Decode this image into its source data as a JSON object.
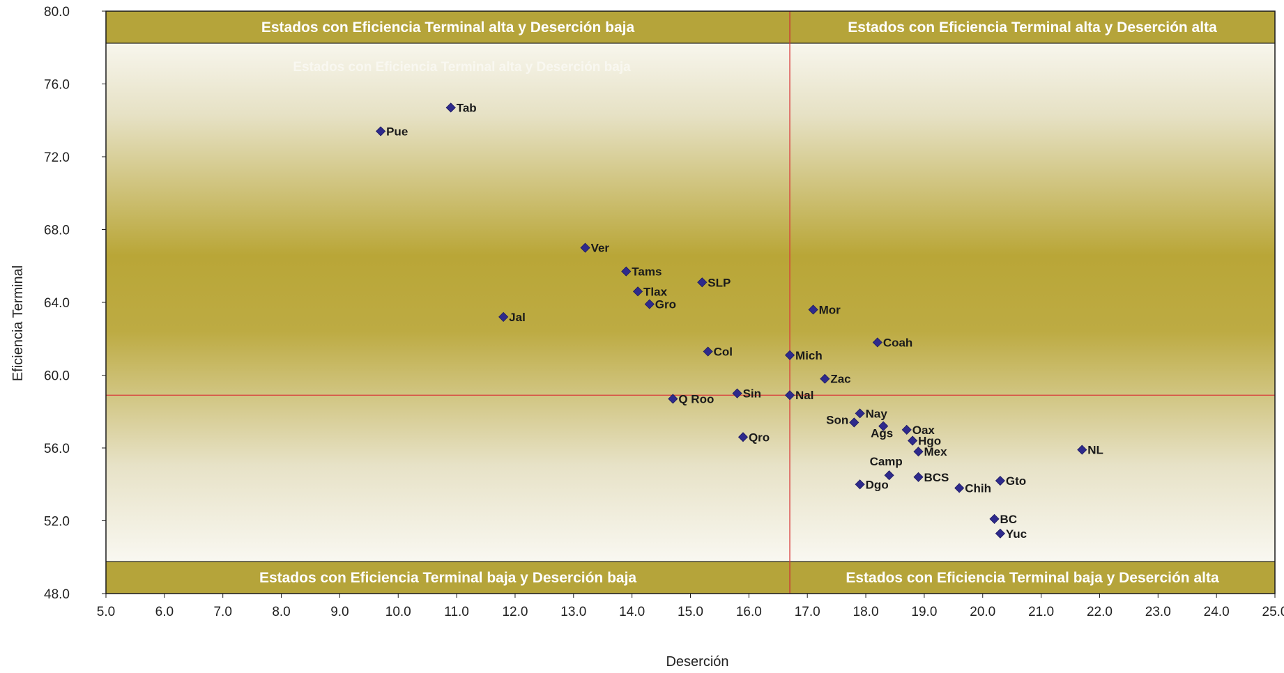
{
  "chart_data": {
    "type": "scatter",
    "xlabel": "Deserción",
    "ylabel": "Eficiencia Terminal",
    "xlim": [
      5.0,
      25.0
    ],
    "ylim": [
      48.0,
      80.0
    ],
    "x_ticks": [
      "5.0",
      "6.0",
      "7.0",
      "8.0",
      "9.0",
      "10.0",
      "11.0",
      "12.0",
      "13.0",
      "14.0",
      "15.0",
      "16.0",
      "17.0",
      "18.0",
      "19.0",
      "20.0",
      "21.0",
      "22.0",
      "23.0",
      "24.0",
      "25.0"
    ],
    "y_ticks": [
      "48.0",
      "52.0",
      "56.0",
      "60.0",
      "64.0",
      "68.0",
      "72.0",
      "76.0",
      "80.0"
    ],
    "reference_lines": {
      "x": 16.7,
      "y": 58.9
    },
    "quadrant_labels": {
      "top_left": "Estados con Eficiencia Terminal alta y Deserción baja",
      "top_right": "Estados con Eficiencia Terminal alta y Deserción alta",
      "bottom_left": "Estados con Eficiencia Terminal baja y Deserción baja",
      "bottom_right": "Estados con Eficiencia Terminal baja y Deserción alta"
    },
    "ghost_label": "Estados con Eficiencia Terminal alta y Deserción baja",
    "colors": {
      "marker": "#2e2a8c",
      "band": "#b5a43a",
      "reference_line": "#d93a3a",
      "gradient_mid": "#b9a637"
    },
    "points": [
      {
        "label": "Tab",
        "x": 10.9,
        "y": 74.7
      },
      {
        "label": "Pue",
        "x": 9.7,
        "y": 73.4
      },
      {
        "label": "Ver",
        "x": 13.2,
        "y": 67.0
      },
      {
        "label": "Tams",
        "x": 13.9,
        "y": 65.7
      },
      {
        "label": "SLP",
        "x": 15.2,
        "y": 65.1
      },
      {
        "label": "Tlax",
        "x": 14.1,
        "y": 64.6
      },
      {
        "label": "Gro",
        "x": 14.3,
        "y": 63.9
      },
      {
        "label": "Jal",
        "x": 11.8,
        "y": 63.2
      },
      {
        "label": "Mor",
        "x": 17.1,
        "y": 63.6
      },
      {
        "label": "Coah",
        "x": 18.2,
        "y": 61.8
      },
      {
        "label": "Col",
        "x": 15.3,
        "y": 61.3
      },
      {
        "label": "Mich",
        "x": 16.7,
        "y": 61.1
      },
      {
        "label": "Zac",
        "x": 17.3,
        "y": 59.8
      },
      {
        "label": "Sin",
        "x": 15.8,
        "y": 59.0
      },
      {
        "label": "Nal",
        "x": 16.7,
        "y": 58.9
      },
      {
        "label": "Q Roo",
        "x": 14.7,
        "y": 58.7
      },
      {
        "label": "Nay",
        "x": 17.9,
        "y": 57.9
      },
      {
        "label": "Son",
        "x": 17.8,
        "y": 57.4
      },
      {
        "label": "Ags",
        "x": 18.3,
        "y": 57.2
      },
      {
        "label": "Oax",
        "x": 18.7,
        "y": 57.0
      },
      {
        "label": "Qro",
        "x": 15.9,
        "y": 56.6
      },
      {
        "label": "Hgo",
        "x": 18.8,
        "y": 56.4
      },
      {
        "label": "NL",
        "x": 21.7,
        "y": 55.9
      },
      {
        "label": "Mex",
        "x": 18.9,
        "y": 55.8
      },
      {
        "label": "Camp",
        "x": 18.4,
        "y": 54.5
      },
      {
        "label": "BCS",
        "x": 18.9,
        "y": 54.4
      },
      {
        "label": "Gto",
        "x": 20.3,
        "y": 54.2
      },
      {
        "label": "Dgo",
        "x": 17.9,
        "y": 54.0
      },
      {
        "label": "Chih",
        "x": 19.6,
        "y": 53.8
      },
      {
        "label": "BC",
        "x": 20.2,
        "y": 52.1
      },
      {
        "label": "Yuc",
        "x": 20.3,
        "y": 51.3
      }
    ]
  }
}
